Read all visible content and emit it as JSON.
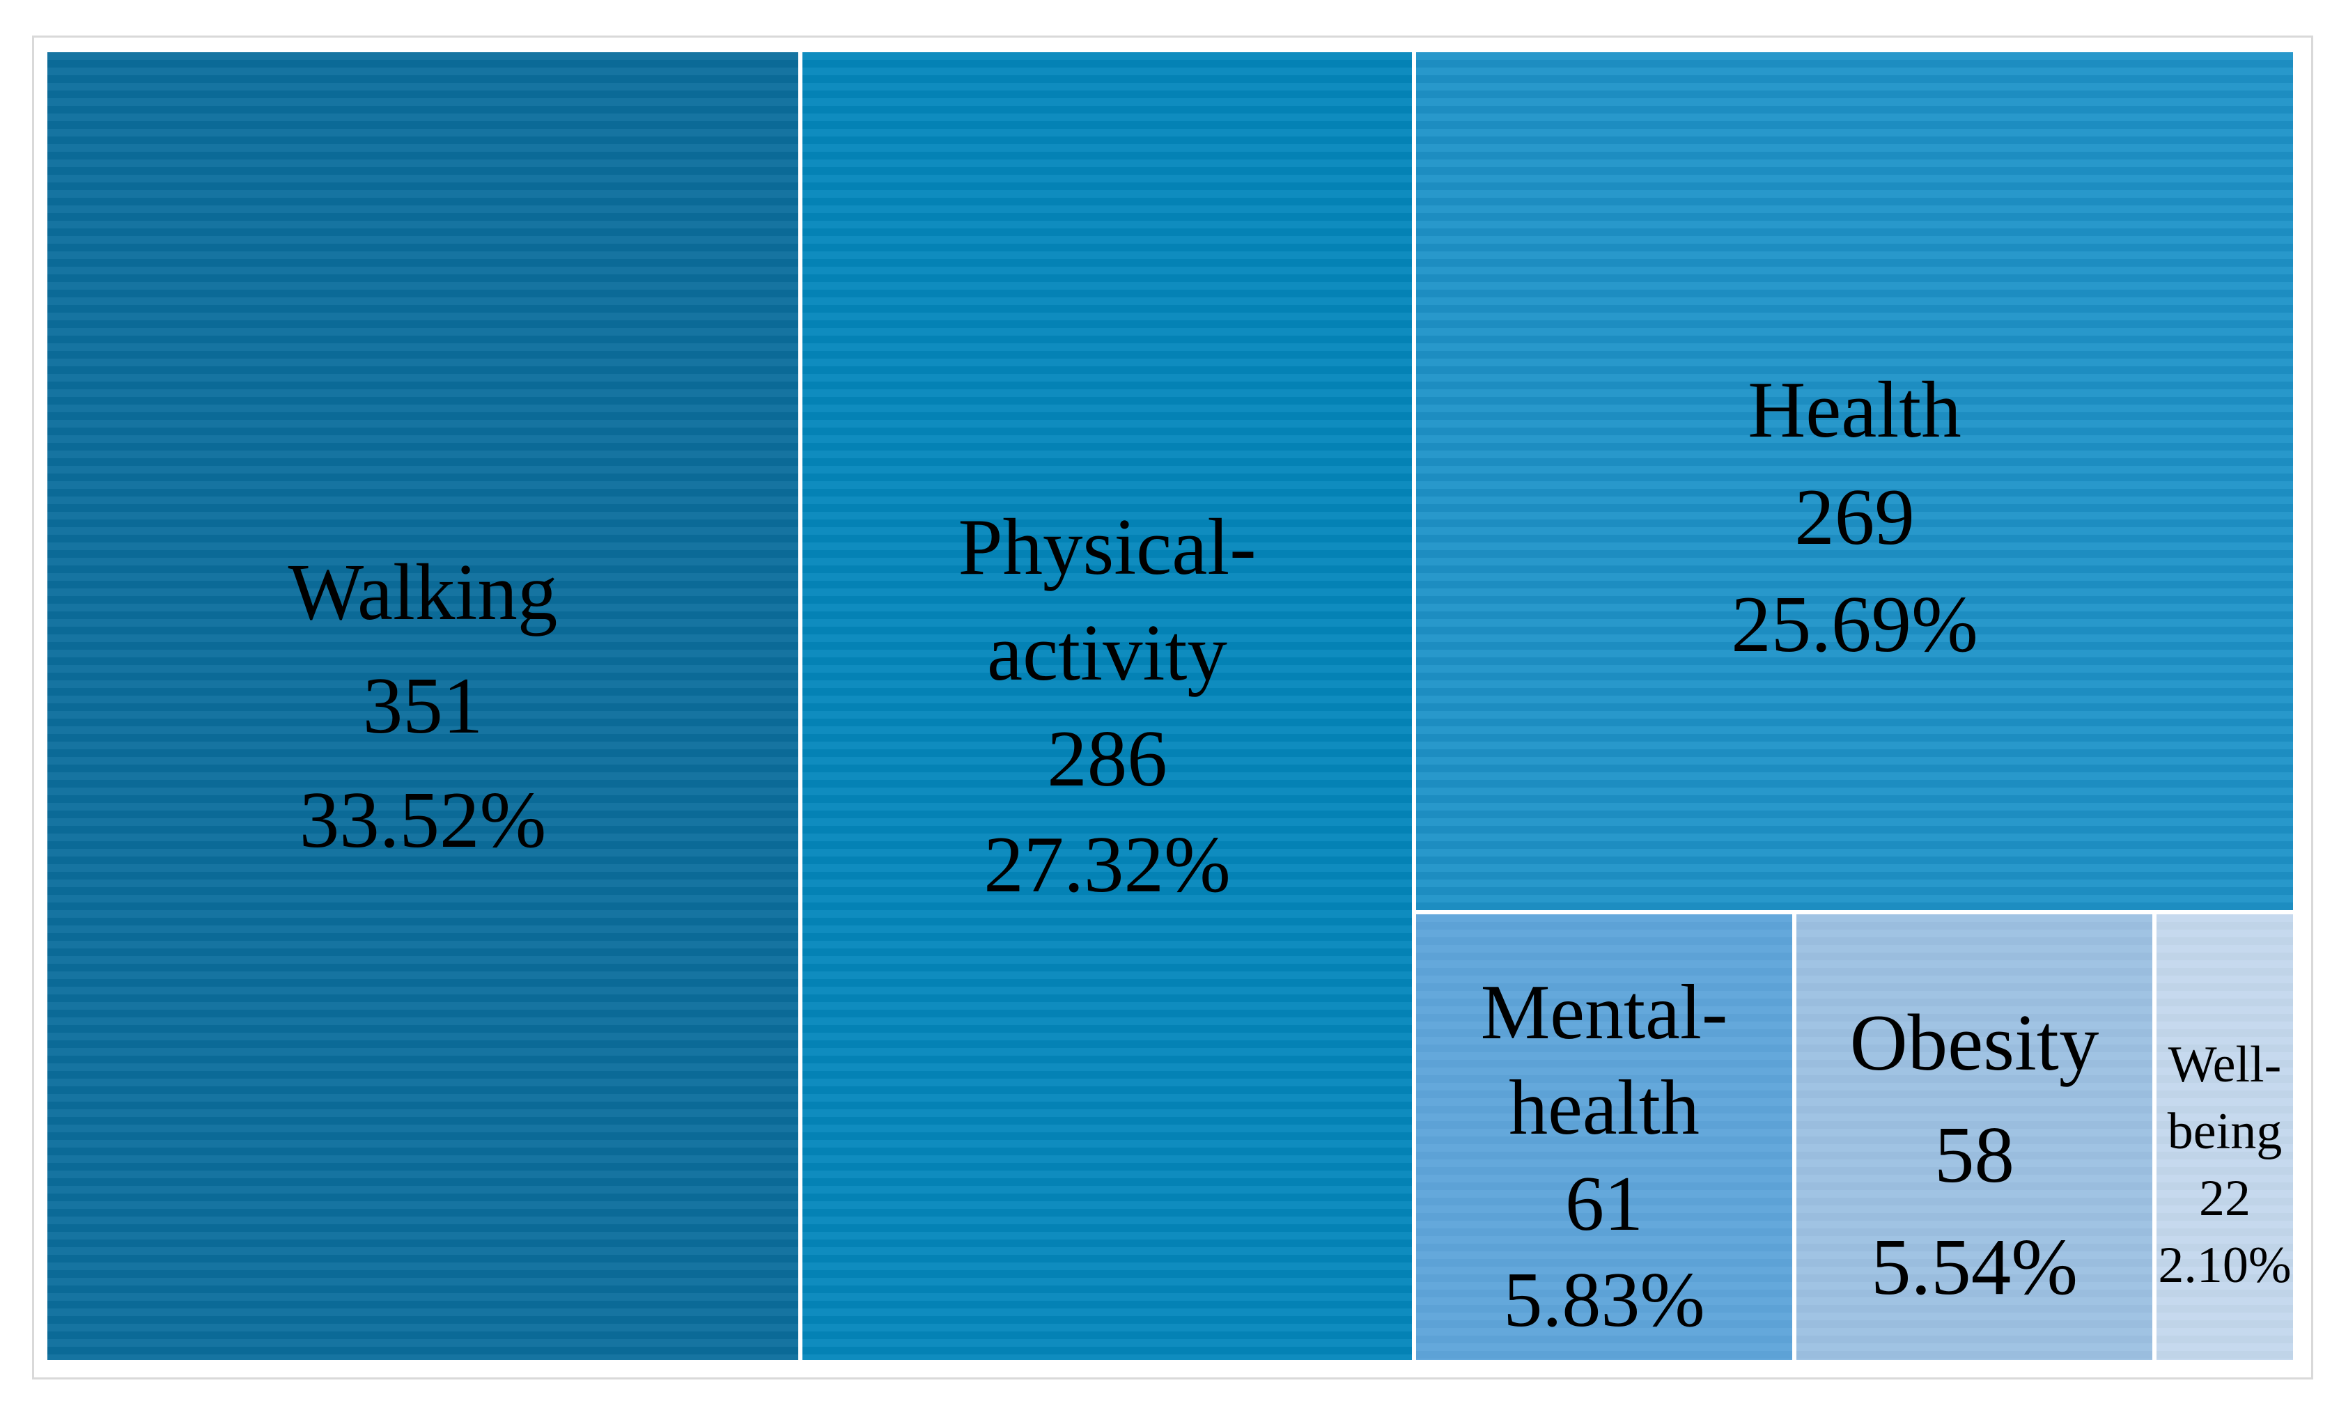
{
  "chart_data": {
    "type": "treemap",
    "title": "",
    "legend": false,
    "items": [
      {
        "label": "Walking",
        "value": 351,
        "percent": 33.52,
        "color": "#0b6e9d"
      },
      {
        "label": "Physical-activity",
        "value": 286,
        "percent": 27.32,
        "color": "#0487bc"
      },
      {
        "label": "Health",
        "value": 269,
        "percent": 25.69,
        "color": "#1e93c9"
      },
      {
        "label": "Mental-health",
        "value": 61,
        "percent": 5.83,
        "color": "#5fa5da"
      },
      {
        "label": "Obesity",
        "value": 58,
        "percent": 5.54,
        "color": "#9dc1e2"
      },
      {
        "label": "Well-being",
        "value": 22,
        "percent": 2.1,
        "color": "#c4d8ed"
      }
    ]
  },
  "treemap": {
    "cells": [
      {
        "name": "walking",
        "lines": [
          "Walking",
          "351",
          "33.52%"
        ]
      },
      {
        "name": "physical-activity",
        "lines": [
          "Physical-",
          "activity",
          "286",
          "27.32%"
        ]
      },
      {
        "name": "health",
        "lines": [
          "Health",
          "269",
          "25.69%"
        ]
      },
      {
        "name": "mental-health",
        "lines": [
          "Mental-",
          "health",
          "61",
          "5.83%"
        ]
      },
      {
        "name": "obesity",
        "lines": [
          "Obesity",
          "58",
          "5.54%"
        ]
      },
      {
        "name": "well-being",
        "lines": [
          "Well-",
          "being",
          "22",
          "2.10%"
        ]
      }
    ]
  }
}
